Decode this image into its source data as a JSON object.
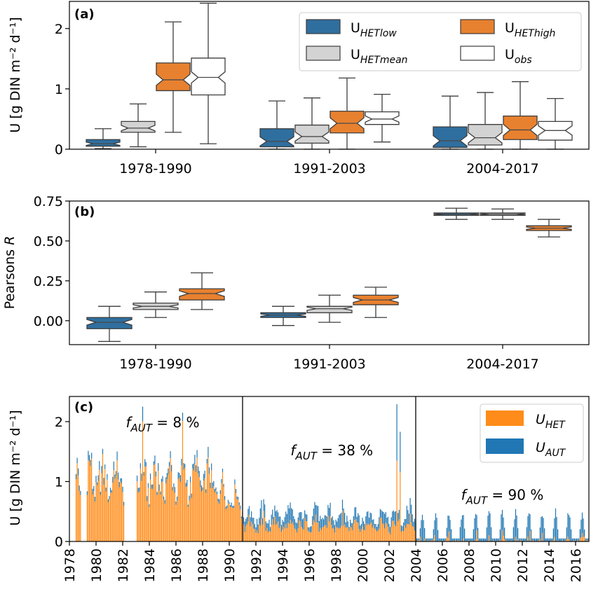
{
  "figure": {
    "panels": [
      "(a)",
      "(b)",
      "(c)"
    ]
  },
  "chart_data": [
    {
      "type": "box",
      "label": "(a)",
      "ylabel": "U [g DIN m⁻² d⁻¹]",
      "ylim": [
        0,
        2.45
      ],
      "yticks": [
        "0",
        "1",
        "2"
      ],
      "ytick_values": [
        0,
        1,
        2
      ],
      "categories": [
        "1978-1990",
        "1991-2003",
        "2004-2017"
      ],
      "legend": [
        {
          "base": "U",
          "sub": "HETlow",
          "color": "#2f6f9f"
        },
        {
          "base": "U",
          "sub": "HEThigh",
          "color": "#e8812f"
        },
        {
          "base": "U",
          "sub": "HETmean",
          "color": "#d3d3d3"
        },
        {
          "base": "U",
          "sub": "obs",
          "color": "#ffffff"
        }
      ],
      "series": [
        {
          "name": "UHETlow",
          "color": "#2f6f9f",
          "median_color": "#4a4a4a",
          "boxes": [
            {
              "wlo": 0.01,
              "q1": 0.05,
              "med": 0.09,
              "q3": 0.16,
              "whi": 0.34
            },
            {
              "wlo": 0.0,
              "q1": 0.04,
              "med": 0.13,
              "q3": 0.34,
              "whi": 0.8
            },
            {
              "wlo": 0.0,
              "q1": 0.03,
              "med": 0.14,
              "q3": 0.37,
              "whi": 0.88
            }
          ]
        },
        {
          "name": "UHETmean",
          "color": "#d3d3d3",
          "median_color": "#4a4a4a",
          "boxes": [
            {
              "wlo": 0.04,
              "q1": 0.28,
              "med": 0.35,
              "q3": 0.46,
              "whi": 0.75
            },
            {
              "wlo": 0.0,
              "q1": 0.1,
              "med": 0.21,
              "q3": 0.4,
              "whi": 0.85
            },
            {
              "wlo": 0.0,
              "q1": 0.07,
              "med": 0.19,
              "q3": 0.41,
              "whi": 0.94
            }
          ]
        },
        {
          "name": "UHEThigh",
          "color": "#e8812f",
          "median_color": "#4a4a4a",
          "boxes": [
            {
              "wlo": 0.28,
              "q1": 0.97,
              "med": 1.15,
              "q3": 1.43,
              "whi": 2.11
            },
            {
              "wlo": 0.0,
              "q1": 0.27,
              "med": 0.43,
              "q3": 0.63,
              "whi": 1.18
            },
            {
              "wlo": 0.0,
              "q1": 0.16,
              "med": 0.32,
              "q3": 0.55,
              "whi": 1.12
            }
          ]
        },
        {
          "name": "Uobs",
          "color": "#ffffff",
          "median_color": "#4a4a4a",
          "boxes": [
            {
              "wlo": 0.09,
              "q1": 0.9,
              "med": 1.19,
              "q3": 1.51,
              "whi": 2.42
            },
            {
              "wlo": 0.12,
              "q1": 0.41,
              "med": 0.5,
              "q3": 0.62,
              "whi": 0.91
            },
            {
              "wlo": 0.0,
              "q1": 0.15,
              "med": 0.31,
              "q3": 0.46,
              "whi": 0.84
            }
          ]
        }
      ]
    },
    {
      "type": "box",
      "label": "(b)",
      "ylabel": "Pearsons R",
      "ylim": [
        -0.15,
        0.75
      ],
      "yticks": [
        "0.00",
        "0.25",
        "0.50",
        "0.75"
      ],
      "ytick_values": [
        0,
        0.25,
        0.5,
        0.75
      ],
      "categories": [
        "1978-1990",
        "1991-2003",
        "2004-2017"
      ],
      "series": [
        {
          "name": "UHETlow",
          "color": "#2f6f9f",
          "median_color": "#4a4a4a",
          "boxes": [
            {
              "wlo": -0.13,
              "q1": -0.05,
              "med": -0.01,
              "q3": 0.02,
              "whi": 0.09
            },
            {
              "wlo": -0.03,
              "q1": 0.02,
              "med": 0.035,
              "q3": 0.05,
              "whi": 0.09
            },
            {
              "wlo": 0.635,
              "q1": 0.66,
              "med": 0.667,
              "q3": 0.675,
              "whi": 0.705
            }
          ]
        },
        {
          "name": "UHETmean",
          "color": "#d3d3d3",
          "median_color": "#4a4a4a",
          "boxes": [
            {
              "wlo": 0.02,
              "q1": 0.07,
              "med": 0.09,
              "q3": 0.11,
              "whi": 0.18
            },
            {
              "wlo": -0.01,
              "q1": 0.05,
              "med": 0.075,
              "q3": 0.09,
              "whi": 0.16
            },
            {
              "wlo": 0.635,
              "q1": 0.66,
              "med": 0.667,
              "q3": 0.675,
              "whi": 0.7
            }
          ]
        },
        {
          "name": "UHEThigh",
          "color": "#e8812f",
          "median_color": "#4a4a4a",
          "boxes": [
            {
              "wlo": 0.07,
              "q1": 0.13,
              "med": 0.17,
              "q3": 0.2,
              "whi": 0.3
            },
            {
              "wlo": 0.02,
              "q1": 0.1,
              "med": 0.13,
              "q3": 0.16,
              "whi": 0.21
            },
            {
              "wlo": 0.525,
              "q1": 0.565,
              "med": 0.58,
              "q3": 0.595,
              "whi": 0.635
            }
          ]
        }
      ]
    },
    {
      "type": "bar",
      "stacked": true,
      "label": "(c)",
      "ylabel": "U [g DIN m⁻² d⁻¹]",
      "xlim": [
        1978,
        2017
      ],
      "ylim": [
        0,
        2.42
      ],
      "yticks": [
        "0",
        "1",
        "2"
      ],
      "ytick_values": [
        0,
        1,
        2
      ],
      "xticks": [
        "1978",
        "1980",
        "1982",
        "1984",
        "1986",
        "1988",
        "1990",
        "1992",
        "1994",
        "1996",
        "1998",
        "2000",
        "2002",
        "2004",
        "2006",
        "2008",
        "2010",
        "2012",
        "2014",
        "2016"
      ],
      "period_boundaries": [
        1991,
        2004
      ],
      "legend": [
        {
          "base": "U",
          "sub": "HET",
          "color": "#ff8c1a"
        },
        {
          "base": "U",
          "sub": "AUT",
          "color": "#2077b4"
        }
      ],
      "annotations": [
        {
          "prefix": "f",
          "sub": "AUT",
          "text": " = 8 %",
          "x": 1985.0,
          "y": 2.0
        },
        {
          "prefix": "f",
          "sub": "AUT",
          "text": " = 38 %",
          "x": 1997.7,
          "y": 1.53
        },
        {
          "prefix": "f",
          "sub": "AUT",
          "text": " = 90 %",
          "x": 2010.5,
          "y": 0.79
        }
      ],
      "series": [
        {
          "name": "UHET",
          "color": "#ff8c1a",
          "period_pattern": [
            {
              "start": 1978.5,
              "end": 1991.0,
              "base": 1.05,
              "amp": 0.45,
              "frac_aut": 0.08
            },
            {
              "start": 1991.0,
              "end": 2004.0,
              "base": 0.38,
              "amp": 0.25,
              "frac_aut": 0.38
            },
            {
              "start": 2004.0,
              "end": 2017.0,
              "base": 0.05,
              "amp": 0.02,
              "frac_aut": 0.9
            }
          ]
        },
        {
          "name": "UAUT",
          "color": "#2077b4"
        }
      ],
      "gaps": [
        [
          1978.9,
          1979.3
        ],
        [
          1982.1,
          1983.0
        ]
      ],
      "peaks": [
        {
          "x": 1983.5,
          "value": 2.25
        },
        {
          "x": 1986.5,
          "value": 2.15
        },
        {
          "x": 2002.6,
          "value": 2.29
        },
        {
          "x": 2002.8,
          "value": 1.83
        }
      ]
    }
  ]
}
